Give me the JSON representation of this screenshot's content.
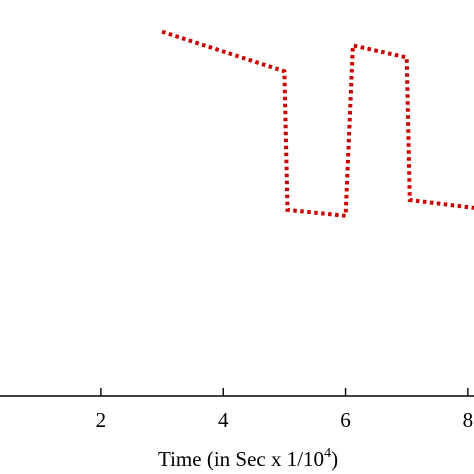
{
  "chart_data": {
    "type": "line",
    "xlabel": "Time (in Sec x 1/10",
    "xlabel_superscript": "4",
    "xlabel_suffix": ")",
    "ylabel": "",
    "x_ticks": [
      2,
      4,
      6,
      8
    ],
    "x_tick_labels": [
      "2",
      "4",
      "6",
      "8"
    ],
    "xlim": [
      0.35,
      8.1
    ],
    "ylim": [
      0,
      1
    ],
    "grid": false,
    "series": [
      {
        "color": "#cc0000",
        "line_style": "dotted",
        "x": [
          3.0,
          5.0,
          5.05,
          6.0,
          6.12,
          7.0,
          7.05,
          8.1
        ],
        "y": [
          0.92,
          0.82,
          0.47,
          0.455,
          0.885,
          0.855,
          0.495,
          0.475
        ]
      }
    ]
  }
}
